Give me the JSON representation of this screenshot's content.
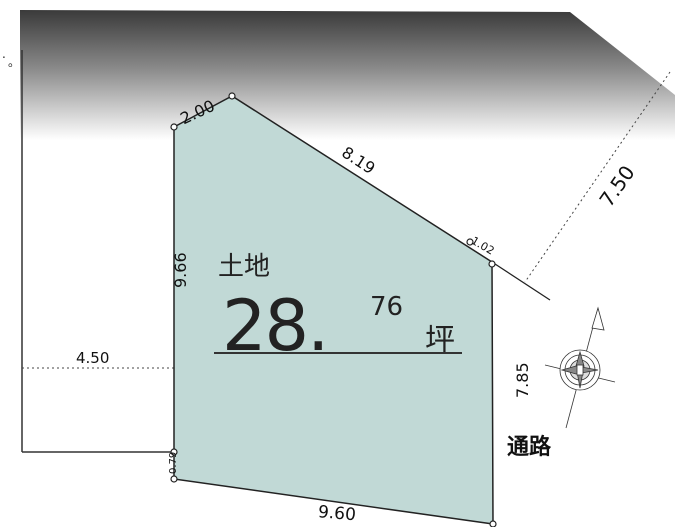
{
  "plot": {
    "area_label": "土地",
    "area_value_int": "28.",
    "area_value_dec": "76",
    "area_unit": "坪",
    "fill_color": "#c1d9d6",
    "road_color": "#555555"
  },
  "dimensions": {
    "top_short": "2.00",
    "top_long": "8.19",
    "corner_small": "1.02",
    "left_side": "9.66",
    "right_side": "7.85",
    "bottom": "9.60",
    "bottom_left_small": "0.79",
    "setback": "4.50",
    "diagonal_road": "7.50"
  },
  "labels": {
    "passage": "通路"
  },
  "compass": {
    "icon": "compass-north-icon"
  }
}
